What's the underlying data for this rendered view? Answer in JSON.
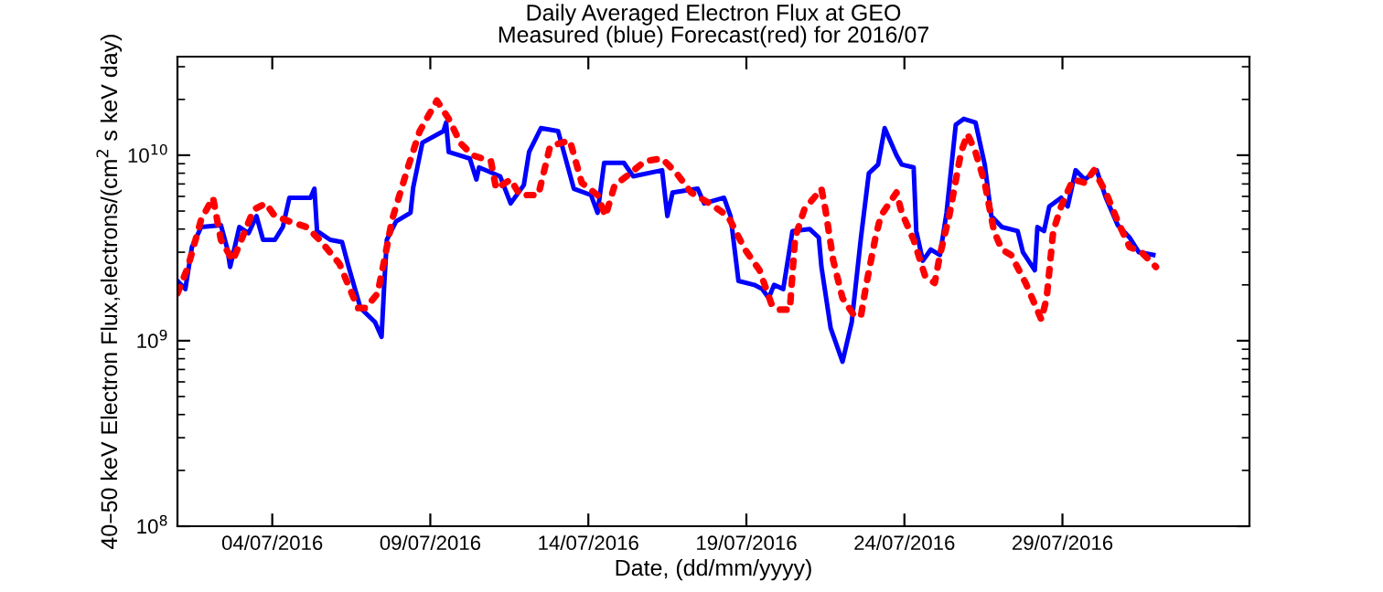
{
  "chart_data": {
    "type": "line",
    "title": "Daily Averaged Electron Flux at GEO",
    "subtitle": "Measured (blue) Forecast(red) for 2016/07",
    "xlabel": "Date, (dd/mm/yyyy)",
    "ylabel": "40–50 keV Electron Flux,electrons/(cm$^{2}$ s keV day)",
    "log": "y",
    "grid": false,
    "legend": false,
    "xlim": [
      "2016-07-01",
      "2016-08-03T22:00"
    ],
    "xticks": [
      {
        "value": "2016-07-04",
        "label": "04/07/2016"
      },
      {
        "value": "2016-07-09",
        "label": "09/07/2016"
      },
      {
        "value": "2016-07-14",
        "label": "14/07/2016"
      },
      {
        "value": "2016-07-19",
        "label": "19/07/2016"
      },
      {
        "value": "2016-07-24",
        "label": "24/07/2016"
      },
      {
        "value": "2016-07-29",
        "label": "29/07/2016"
      }
    ],
    "ylim": [
      100000000.0,
      34000000000.0
    ],
    "yticks": [
      {
        "value": 100000000.0,
        "label": "10$^{8}$"
      },
      {
        "value": 1000000000.0,
        "label": "10$^{9}$"
      },
      {
        "value": 10000000000.0,
        "label": "10$^{10}$"
      }
    ],
    "series": [
      {
        "color": "#0000ff",
        "line_style": "solid",
        "x": [
          "2016-07-01T00:00",
          "2016-07-01T06:00",
          "2016-07-01T11:00",
          "2016-07-01T18:00",
          "2016-07-02T09:00",
          "2016-07-02T14:00",
          "2016-07-02T16:00",
          "2016-07-02T23:00",
          "2016-07-03T06:00",
          "2016-07-03T12:00",
          "2016-07-03T17:00",
          "2016-07-04T02:00",
          "2016-07-04T08:00",
          "2016-07-04T13:00",
          "2016-07-05T05:00",
          "2016-07-05T08:00",
          "2016-07-05T10:00",
          "2016-07-05T20:00",
          "2016-07-06T05:00",
          "2016-07-06T10:00",
          "2016-07-06T19:00",
          "2016-07-07T06:00",
          "2016-07-07T11:00",
          "2016-07-07T13:00",
          "2016-07-07T15:00",
          "2016-07-07T22:00",
          "2016-07-08T09:00",
          "2016-07-08T11:00",
          "2016-07-08T18:00",
          "2016-07-09T10:00",
          "2016-07-09T12:00",
          "2016-07-09T14:00",
          "2016-07-10T06:00",
          "2016-07-10T11:00",
          "2016-07-10T13:00",
          "2016-07-11T05:00",
          "2016-07-11T13:00",
          "2016-07-11T23:00",
          "2016-07-12T03:00",
          "2016-07-12T12:00",
          "2016-07-13T01:00",
          "2016-07-13T13:00",
          "2016-07-14T02:00",
          "2016-07-14T07:00",
          "2016-07-14T12:00",
          "2016-07-15T03:00",
          "2016-07-15T10:00",
          "2016-07-16T08:00",
          "2016-07-16T12:00",
          "2016-07-16T16:00",
          "2016-07-17T11:00",
          "2016-07-17T16:00",
          "2016-07-18T07:00",
          "2016-07-18T12:00",
          "2016-07-18T18:00",
          "2016-07-19T06:00",
          "2016-07-19T12:00",
          "2016-07-19T17:00",
          "2016-07-19T21:00",
          "2016-07-20T04:00",
          "2016-07-20T11:00",
          "2016-07-21T00:00",
          "2016-07-21T07:00",
          "2016-07-21T09:00",
          "2016-07-21T16:00",
          "2016-07-22T01:00",
          "2016-07-22T08:00",
          "2016-07-22T15:00",
          "2016-07-22T21:00",
          "2016-07-23T04:00",
          "2016-07-23T09:00",
          "2016-07-23T18:00",
          "2016-07-23T22:00",
          "2016-07-24T07:00",
          "2016-07-24T09:00",
          "2016-07-24T14:00",
          "2016-07-24T20:00",
          "2016-07-25T03:00",
          "2016-07-25T08:00",
          "2016-07-25T15:00",
          "2016-07-25T21:00",
          "2016-07-26T06:00",
          "2016-07-26T13:00",
          "2016-07-26T18:00",
          "2016-07-27T02:00",
          "2016-07-27T14:00",
          "2016-07-27T18:00",
          "2016-07-28T03:00",
          "2016-07-28T05:00",
          "2016-07-28T10:00",
          "2016-07-28T14:00",
          "2016-07-28T23:00",
          "2016-07-29T04:00",
          "2016-07-29T10:00",
          "2016-07-29T17:00",
          "2016-07-30T02:00",
          "2016-07-30T09:00",
          "2016-07-30T18:00",
          "2016-07-31T03:00",
          "2016-07-31T10:00",
          "2016-07-31T21:00"
        ],
        "values": [
          2100000000.0,
          1900000000.0,
          3200000000.0,
          4100000000.0,
          4200000000.0,
          3100000000.0,
          2500000000.0,
          4100000000.0,
          3800000000.0,
          4700000000.0,
          3500000000.0,
          3500000000.0,
          4100000000.0,
          5900000000.0,
          5900000000.0,
          6600000000.0,
          3900000000.0,
          3500000000.0,
          3400000000.0,
          2500000000.0,
          1500000000.0,
          1260000000.0,
          1050000000.0,
          2000000000.0,
          3500000000.0,
          4400000000.0,
          4900000000.0,
          6700000000.0,
          11700000000.0,
          13500000000.0,
          15000000000.0,
          10400000000.0,
          9600000000.0,
          7400000000.0,
          8600000000.0,
          7700000000.0,
          5500000000.0,
          6900000000.0,
          10400000000.0,
          14000000000.0,
          13500000000.0,
          6600000000.0,
          6100000000.0,
          4900000000.0,
          9100000000.0,
          9100000000.0,
          7700000000.0,
          8300000000.0,
          4700000000.0,
          6300000000.0,
          6600000000.0,
          5500000000.0,
          5900000000.0,
          4700000000.0,
          2100000000.0,
          2000000000.0,
          1900000000.0,
          1700000000.0,
          2000000000.0,
          1900000000.0,
          3900000000.0,
          4000000000.0,
          3600000000.0,
          2500000000.0,
          1170000000.0,
          770000000.0,
          1260000000.0,
          3600000000.0,
          8000000000.0,
          8900000000.0,
          14000000000.0,
          10000000000.0,
          8900000000.0,
          8600000000.0,
          3900000000.0,
          2700000000.0,
          3100000000.0,
          2900000000.0,
          4900000000.0,
          14600000000.0,
          15700000000.0,
          15000000000.0,
          8900000000.0,
          4700000000.0,
          4100000000.0,
          3900000000.0,
          3000000000.0,
          2400000000.0,
          4100000000.0,
          3900000000.0,
          5300000000.0,
          5900000000.0,
          5300000000.0,
          8300000000.0,
          7400000000.0,
          8300000000.0,
          5900000000.0,
          4200000000.0,
          3600000000.0,
          3000000000.0,
          2900000000.0
        ]
      },
      {
        "color": "#ff0000",
        "line_style": "dotted",
        "x": [
          "2016-07-01T00:00",
          "2016-07-01T08:00",
          "2016-07-01T18:00",
          "2016-07-02T03:00",
          "2016-07-02T09:00",
          "2016-07-02T18:00",
          "2016-07-03T10:00",
          "2016-07-03T19:00",
          "2016-07-04T02:00",
          "2016-07-04T13:00",
          "2016-07-05T02:00",
          "2016-07-05T12:00",
          "2016-07-06T03:00",
          "2016-07-06T17:00",
          "2016-07-06T23:00",
          "2016-07-07T08:00",
          "2016-07-07T13:00",
          "2016-07-07T19:00",
          "2016-07-08T07:00",
          "2016-07-08T16:00",
          "2016-07-09T05:00",
          "2016-07-09T14:00",
          "2016-07-09T23:00",
          "2016-07-10T08:00",
          "2016-07-10T22:00",
          "2016-07-11T02:00",
          "2016-07-11T13:00",
          "2016-07-11T20:00",
          "2016-07-12T10:00",
          "2016-07-12T19:00",
          "2016-07-13T10:00",
          "2016-07-13T19:00",
          "2016-07-14T07:00",
          "2016-07-14T13:00",
          "2016-07-14T20:00",
          "2016-07-15T05:00",
          "2016-07-15T19:00",
          "2016-07-16T08:00",
          "2016-07-16T19:00",
          "2016-07-17T06:00",
          "2016-07-17T20:00",
          "2016-07-18T10:00",
          "2016-07-18T23:00",
          "2016-07-19T10:00",
          "2016-07-19T19:00",
          "2016-07-20T00:00",
          "2016-07-20T09:00",
          "2016-07-20T13:00",
          "2016-07-20T20:00",
          "2016-07-21T09:00",
          "2016-07-21T12:00",
          "2016-07-21T18:00",
          "2016-07-22T01:00",
          "2016-07-22T10:00",
          "2016-07-22T15:00",
          "2016-07-22T19:00",
          "2016-07-23T02:00",
          "2016-07-23T06:00",
          "2016-07-23T18:00",
          "2016-07-23T22:00",
          "2016-07-24T07:00",
          "2016-07-24T16:00",
          "2016-07-24T23:00",
          "2016-07-25T03:00",
          "2016-07-25T10:00",
          "2016-07-25T19:00",
          "2016-07-26T00:00",
          "2016-07-26T06:00",
          "2016-07-26T13:00",
          "2016-07-26T20:00",
          "2016-07-27T02:00",
          "2016-07-27T09:00",
          "2016-07-27T20:00",
          "2016-07-28T08:00",
          "2016-07-28T12:00",
          "2016-07-28T17:00",
          "2016-07-28T23:00",
          "2016-07-29T08:00",
          "2016-07-29T17:00",
          "2016-07-30T00:00",
          "2016-07-30T09:00",
          "2016-07-30T18:00",
          "2016-07-31T03:00",
          "2016-07-31T12:00",
          "2016-07-31T23:00"
        ],
        "values": [
          1800000000.0,
          2500000000.0,
          4500000000.0,
          5900000000.0,
          3500000000.0,
          2700000000.0,
          5100000000.0,
          5500000000.0,
          4700000000.0,
          4400000000.0,
          4100000000.0,
          3500000000.0,
          2600000000.0,
          1500000000.0,
          1500000000.0,
          1800000000.0,
          2700000000.0,
          4500000000.0,
          8600000000.0,
          13500000000.0,
          19700000000.0,
          15700000000.0,
          11600000000.0,
          10000000000.0,
          9300000000.0,
          6600000000.0,
          7400000000.0,
          6100000000.0,
          6100000000.0,
          11200000000.0,
          12000000000.0,
          7100000000.0,
          6100000000.0,
          4700000000.0,
          6900000000.0,
          7700000000.0,
          9300000000.0,
          9600000000.0,
          8000000000.0,
          6300000000.0,
          5500000000.0,
          4700000000.0,
          3100000000.0,
          2400000000.0,
          1580000000.0,
          1470000000.0,
          1470000000.0,
          3600000000.0,
          5100000000.0,
          6600000000.0,
          5100000000.0,
          2700000000.0,
          1700000000.0,
          1360000000.0,
          1360000000.0,
          2000000000.0,
          3600000000.0,
          4700000000.0,
          6300000000.0,
          4900000000.0,
          3500000000.0,
          2200000000.0,
          2050000000.0,
          2900000000.0,
          4700000000.0,
          10400000000.0,
          13000000000.0,
          10400000000.0,
          7100000000.0,
          3900000000.0,
          3100000000.0,
          2900000000.0,
          2050000000.0,
          1300000000.0,
          1700000000.0,
          3900000000.0,
          5300000000.0,
          7400000000.0,
          7100000000.0,
          8300000000.0,
          6300000000.0,
          4400000000.0,
          3200000000.0,
          3000000000.0,
          2500000000.0
        ]
      }
    ]
  }
}
